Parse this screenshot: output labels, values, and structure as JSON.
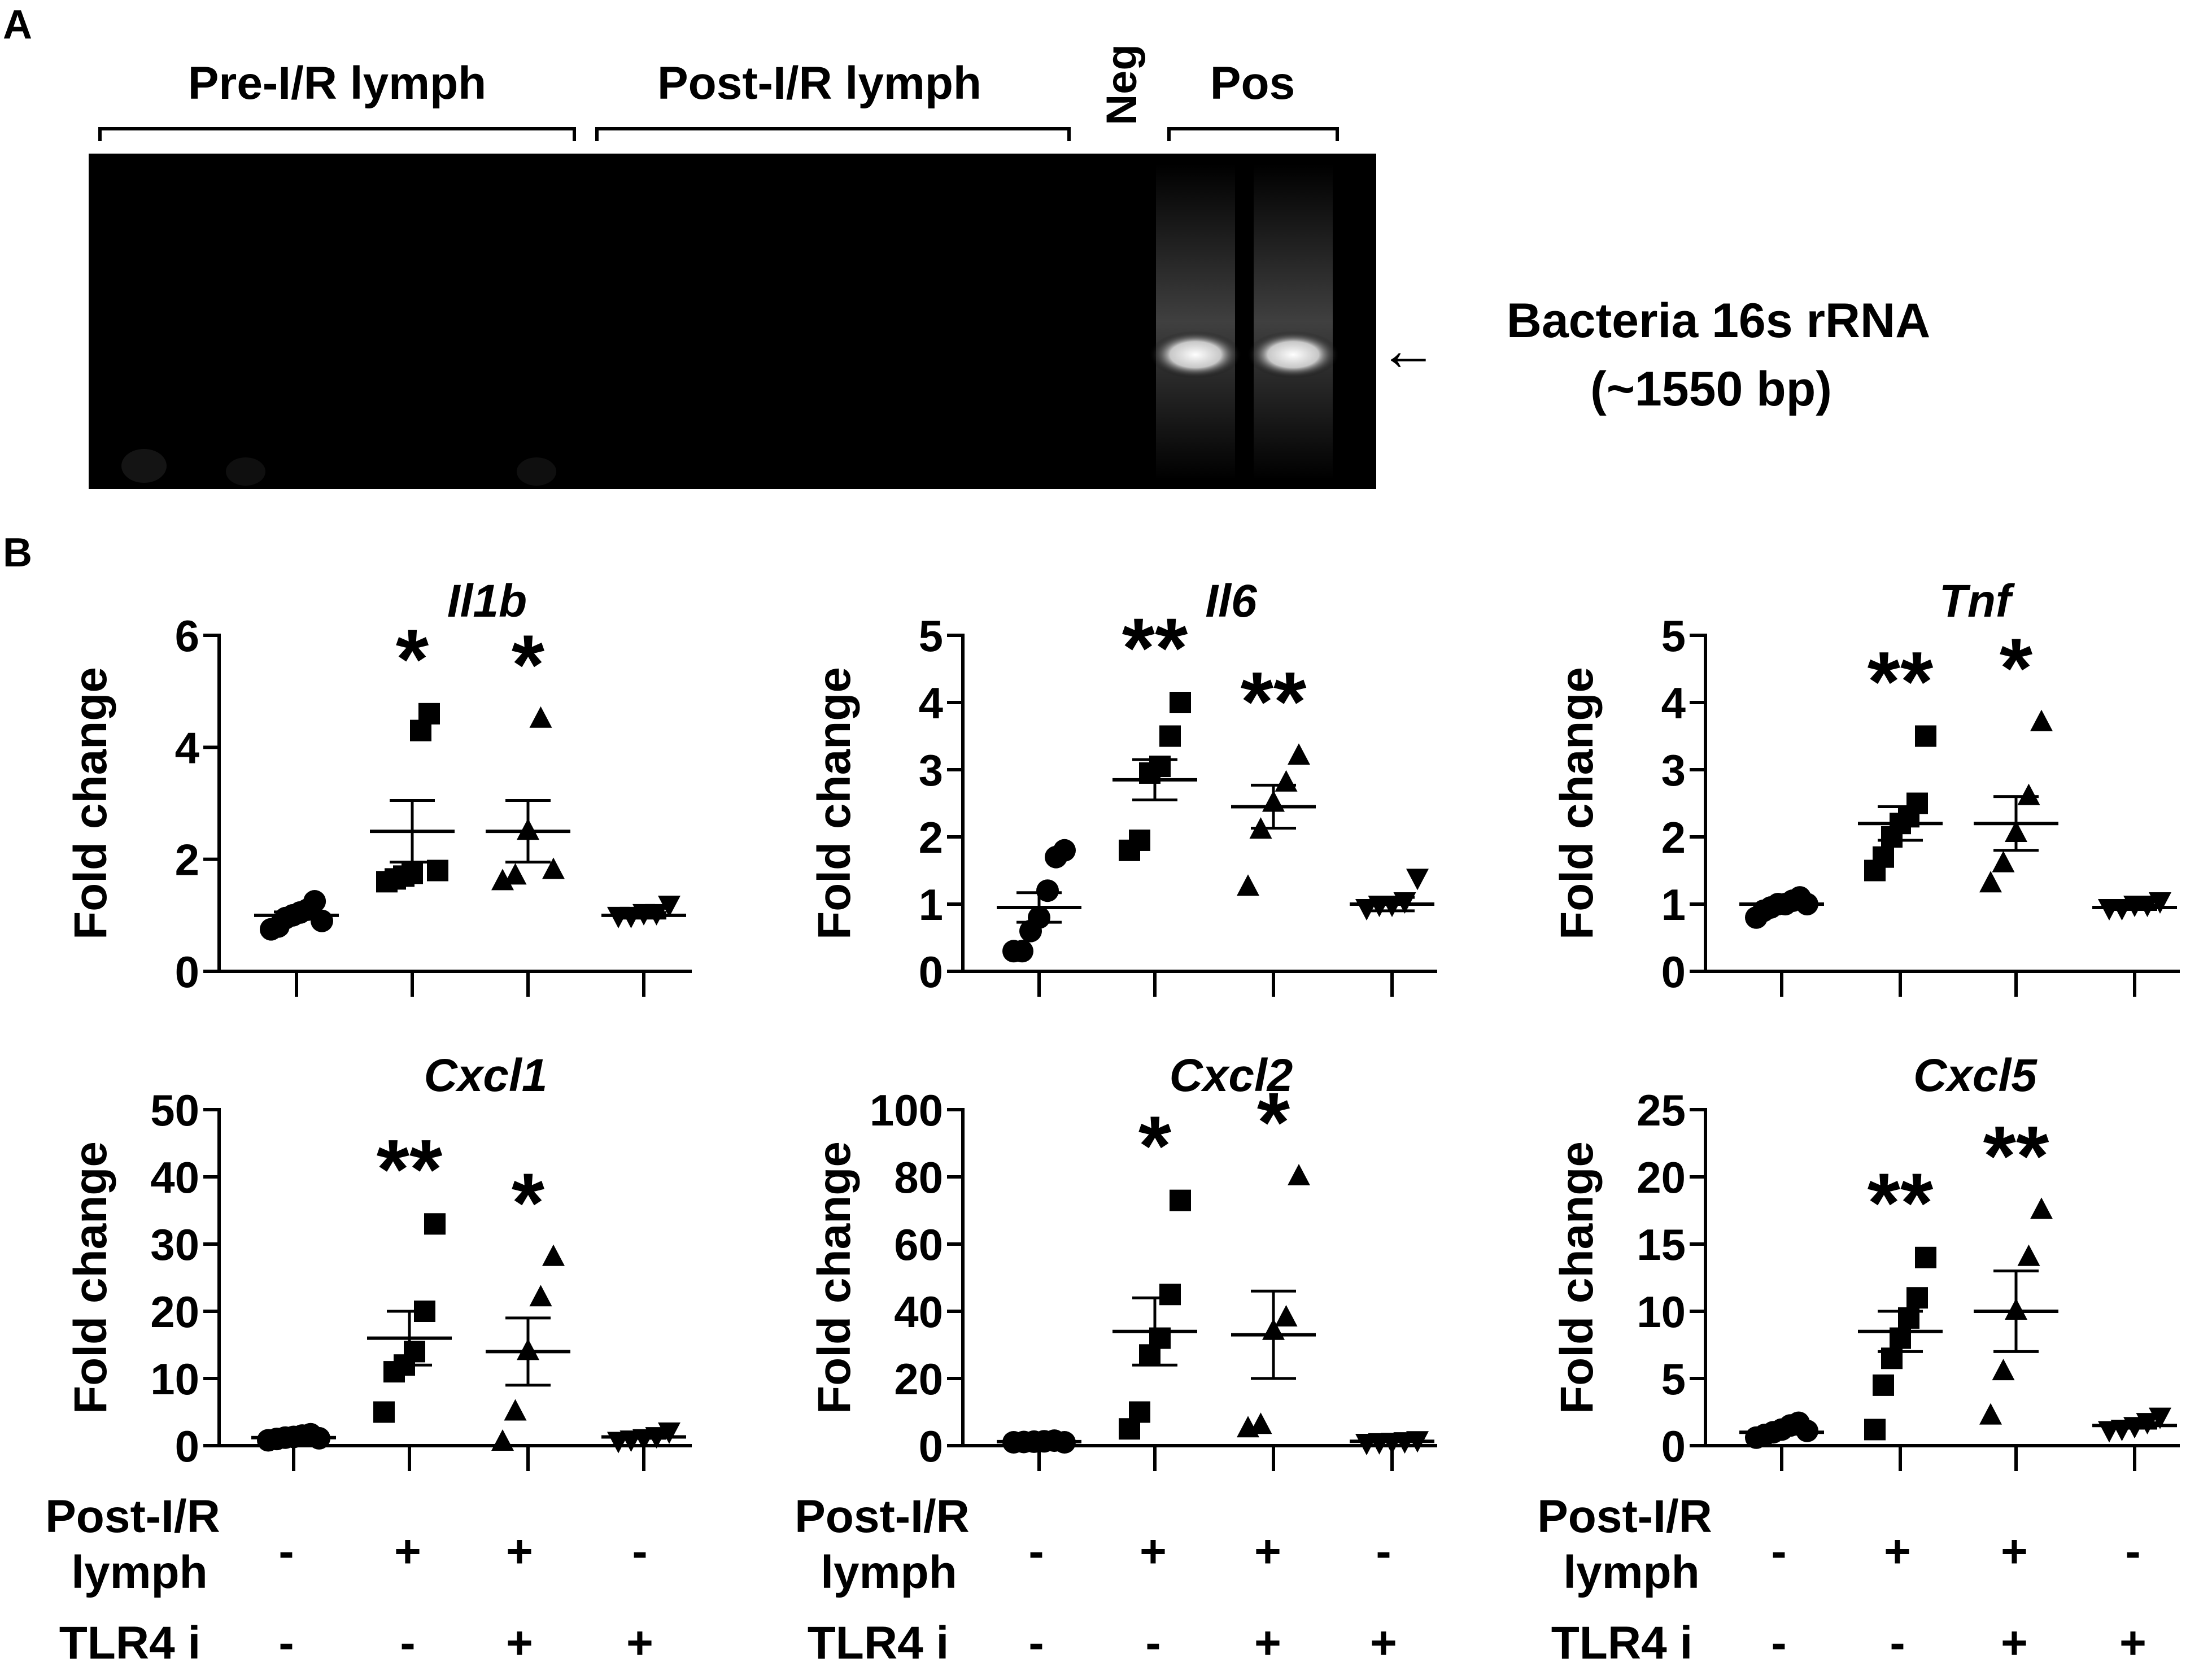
{
  "panel_a": {
    "label": "A",
    "groups": [
      "Pre-I/R lymph",
      "Post-I/R lymph",
      "Neg",
      "Pos"
    ],
    "band_label_line1": "Bacteria 16s rRNA",
    "band_label_line2": "(~1550 bp)",
    "arrow_glyph": "←",
    "gel_color": "#000000",
    "band_color": "#ffffff",
    "band_lanes_by_group": {
      "Pos": 2
    }
  },
  "panel_b": {
    "label": "B",
    "ylabel": "Fold change",
    "conditions": {
      "row1_label_line1": "Post-I/R",
      "row1_label_line2": "lymph",
      "row1_values": [
        "-",
        "+",
        "+",
        "-"
      ],
      "row2_label": "TLR4 i",
      "row2_values": [
        "-",
        "-",
        "+",
        "+"
      ]
    }
  },
  "chart_data": [
    {
      "type": "scatter",
      "title": "Il1b",
      "ylabel": "Fold change",
      "ylim": [
        0,
        6
      ],
      "yticks": [
        "0",
        "2",
        "4",
        "6"
      ],
      "markers": [
        "circle",
        "square",
        "triangle",
        "triangle-down"
      ],
      "significance": [
        "",
        "*",
        "*",
        ""
      ],
      "groups": [
        {
          "values": [
            0.75,
            0.8,
            0.95,
            1.0,
            1.05,
            1.1,
            1.25,
            0.9
          ],
          "mean": 1.0,
          "sem": 0.06
        },
        {
          "values": [
            1.6,
            1.65,
            1.7,
            1.75,
            4.3,
            4.6,
            1.8
          ],
          "mean": 2.5,
          "sem": 0.55
        },
        {
          "values": [
            1.6,
            1.7,
            2.5,
            4.5,
            1.8
          ],
          "mean": 2.5,
          "sem": 0.55
        },
        {
          "values": [
            1.0,
            1.0,
            1.05,
            1.05,
            1.2
          ],
          "mean": 1.0,
          "sem": 0.05
        }
      ]
    },
    {
      "type": "scatter",
      "title": "Il6",
      "ylabel": "Fold change",
      "ylim": [
        0,
        5
      ],
      "yticks": [
        "0",
        "1",
        "2",
        "3",
        "4",
        "5"
      ],
      "markers": [
        "circle",
        "square",
        "triangle",
        "triangle-down"
      ],
      "significance": [
        "",
        "**",
        "**",
        ""
      ],
      "groups": [
        {
          "values": [
            0.3,
            0.3,
            0.6,
            0.8,
            1.2,
            1.7,
            1.8
          ],
          "mean": 0.95,
          "sem": 0.22
        },
        {
          "values": [
            1.8,
            1.95,
            2.95,
            3.05,
            3.5,
            4.0
          ],
          "mean": 2.85,
          "sem": 0.3
        },
        {
          "values": [
            1.25,
            2.1,
            2.5,
            2.8,
            3.2
          ],
          "mean": 2.45,
          "sem": 0.32
        },
        {
          "values": [
            0.95,
            1.0,
            1.0,
            1.05,
            1.4
          ],
          "mean": 1.0,
          "sem": 0.1
        }
      ]
    },
    {
      "type": "scatter",
      "title": "Tnf",
      "ylabel": "Fold change",
      "ylim": [
        0,
        5
      ],
      "yticks": [
        "0",
        "1",
        "2",
        "3",
        "4",
        "5"
      ],
      "markers": [
        "circle",
        "square",
        "triangle",
        "triangle-down"
      ],
      "significance": [
        "",
        "**",
        "*",
        ""
      ],
      "groups": [
        {
          "values": [
            0.8,
            0.9,
            0.95,
            1.0,
            1.0,
            1.05,
            1.1,
            1.0
          ],
          "mean": 1.0,
          "sem": 0.03
        },
        {
          "values": [
            1.5,
            1.7,
            2.0,
            2.2,
            2.3,
            2.5,
            3.5
          ],
          "mean": 2.2,
          "sem": 0.25
        },
        {
          "values": [
            1.3,
            1.6,
            2.05,
            2.6,
            3.7
          ],
          "mean": 2.2,
          "sem": 0.4
        },
        {
          "values": [
            0.95,
            0.95,
            1.0,
            1.0,
            1.05
          ],
          "mean": 0.95,
          "sem": 0.03
        }
      ]
    },
    {
      "type": "scatter",
      "title": "Cxcl1",
      "ylabel": "Fold change",
      "ylim": [
        0,
        50
      ],
      "yticks": [
        "0",
        "10",
        "20",
        "30",
        "40",
        "50"
      ],
      "markers": [
        "circle",
        "square",
        "triangle",
        "triangle-down"
      ],
      "significance": [
        "",
        "**",
        "*",
        ""
      ],
      "groups": [
        {
          "values": [
            0.8,
            1.0,
            1.2,
            1.3,
            1.5,
            1.7,
            1.1
          ],
          "mean": 1.2,
          "sem": 0.1
        },
        {
          "values": [
            5,
            11,
            12,
            14,
            20,
            33
          ],
          "mean": 16,
          "sem": 4
        },
        {
          "values": [
            0.5,
            5,
            14,
            22,
            28
          ],
          "mean": 14,
          "sem": 5
        },
        {
          "values": [
            0.8,
            1.0,
            1.2,
            1.5,
            2.2
          ],
          "mean": 1.3,
          "sem": 0.2
        }
      ]
    },
    {
      "type": "scatter",
      "title": "Cxcl2",
      "ylabel": "Fold change",
      "ylim": [
        0,
        100
      ],
      "yticks": [
        "0",
        "20",
        "40",
        "60",
        "80",
        "100"
      ],
      "markers": [
        "circle",
        "square",
        "triangle",
        "triangle-down"
      ],
      "significance": [
        "",
        "*",
        "*",
        ""
      ],
      "groups": [
        {
          "values": [
            1.0,
            1.1,
            1.2,
            1.3,
            1.5,
            1.0
          ],
          "mean": 1.2,
          "sem": 0.1
        },
        {
          "values": [
            5,
            10,
            27,
            32,
            45,
            73
          ],
          "mean": 34,
          "sem": 10
        },
        {
          "values": [
            5,
            6,
            34,
            38,
            80
          ],
          "mean": 33,
          "sem": 13
        },
        {
          "values": [
            1.0,
            1.2,
            1.3,
            1.5,
            1.8
          ],
          "mean": 1.3,
          "sem": 0.1
        }
      ]
    },
    {
      "type": "scatter",
      "title": "Cxcl5",
      "ylabel": "Fold change",
      "ylim": [
        0,
        25
      ],
      "yticks": [
        "0",
        "5",
        "10",
        "15",
        "20",
        "25"
      ],
      "markers": [
        "circle",
        "square",
        "triangle",
        "triangle-down"
      ],
      "significance": [
        "",
        "**",
        "**",
        ""
      ],
      "groups": [
        {
          "values": [
            0.6,
            0.8,
            1.0,
            1.2,
            1.5,
            1.7,
            1.1
          ],
          "mean": 1.0,
          "sem": 0.15
        },
        {
          "values": [
            1.2,
            4.5,
            6.5,
            8,
            9.5,
            11,
            14
          ],
          "mean": 8.5,
          "sem": 1.5
        },
        {
          "values": [
            2.2,
            5.5,
            10,
            14,
            17.5
          ],
          "mean": 10,
          "sem": 3
        },
        {
          "values": [
            1.2,
            1.3,
            1.5,
            1.8,
            2.2
          ],
          "mean": 1.5,
          "sem": 0.2
        }
      ]
    }
  ]
}
